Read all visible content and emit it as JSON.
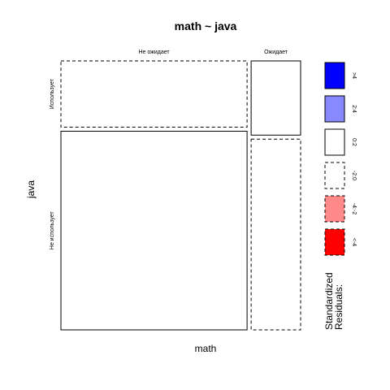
{
  "chart_data": {
    "type": "mosaic",
    "title": "math ~ java",
    "xlabel": "math",
    "ylabel": "java",
    "x_categories": [
      "Не ожидает",
      "Ожидает"
    ],
    "y_categories": [
      "Использует",
      "Не использует"
    ],
    "cells": [
      {
        "x": "Не ожидает",
        "y": "Использует",
        "width_fraction": 0.79,
        "height_fraction": 0.25,
        "residual_band": "-2:0"
      },
      {
        "x": "Не ожидает",
        "y": "Не использует",
        "width_fraction": 0.79,
        "height_fraction": 0.75,
        "residual_band": "0:2"
      },
      {
        "x": "Ожидает",
        "y": "Использует",
        "width_fraction": 0.21,
        "height_fraction": 0.28,
        "residual_band": "0:2"
      },
      {
        "x": "Ожидает",
        "y": "Не использует",
        "width_fraction": 0.21,
        "height_fraction": 0.72,
        "residual_band": "-2:0"
      }
    ],
    "legend": {
      "title_line1": "Standardized",
      "title_line2": "Residuals:",
      "placement": "right",
      "bands": [
        {
          "label": ">4",
          "color": "#0000ff",
          "border": "solid"
        },
        {
          "label": "2:4",
          "color": "#8888ff",
          "border": "solid"
        },
        {
          "label": "0:2",
          "color": "#ffffff",
          "border": "solid"
        },
        {
          "label": "-2:0",
          "color": "#ffffff",
          "border": "dashed"
        },
        {
          "label": "-4:-2",
          "color": "#ff8888",
          "border": "dashed"
        },
        {
          "label": "<-4",
          "color": "#ff0000",
          "border": "dashed"
        }
      ]
    }
  }
}
